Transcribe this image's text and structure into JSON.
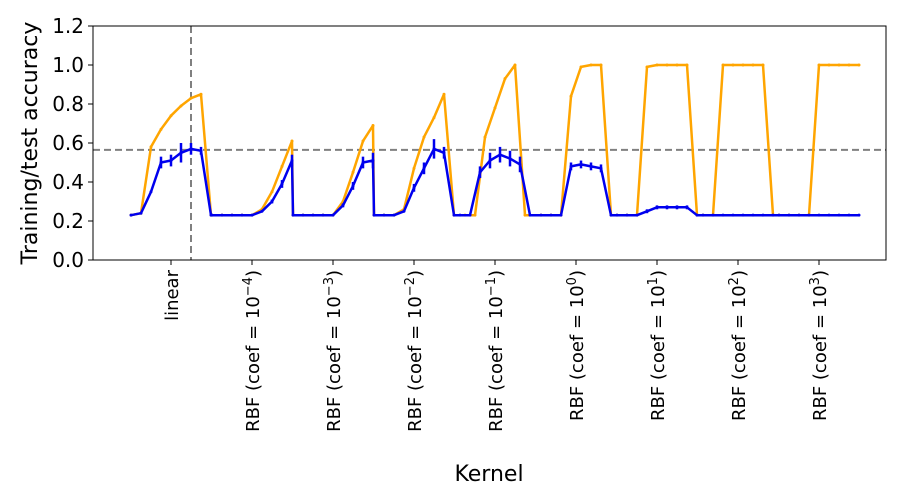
{
  "chart_data": {
    "type": "line",
    "xlabel": "Kernel",
    "ylabel": "Training/test accuracy",
    "ylim": [
      0,
      1.2
    ],
    "yticks": [
      "0.0",
      "0.2",
      "0.4",
      "0.6",
      "0.8",
      "1.0",
      "1.2"
    ],
    "categories": [
      {
        "base": "linear",
        "exp": ""
      },
      {
        "base": "RBF (coef = 10",
        "exp": "−4"
      },
      {
        "base": "RBF (coef = 10",
        "exp": "−3"
      },
      {
        "base": "RBF (coef = 10",
        "exp": "−2"
      },
      {
        "base": "RBF (coef = 10",
        "exp": "−1"
      },
      {
        "base": "RBF (coef = 10",
        "exp": "0"
      },
      {
        "base": "RBF (coef = 10",
        "exp": "1"
      },
      {
        "base": "RBF (coef = 10",
        "exp": "2"
      },
      {
        "base": "RBF (coef = 10",
        "exp": "3"
      }
    ],
    "reference_lines": {
      "horizontal_y": 0.565,
      "vertical_between_category": 0
    },
    "colors": {
      "train": "#FFA500",
      "test": "#0000EE",
      "reference": "#808080"
    },
    "series": [
      {
        "color": "#FFA500",
        "groups": [
          [
            0.23,
            0.24,
            0.58,
            0.67,
            0.74,
            0.79,
            0.83,
            0.85,
            0.23
          ],
          [
            0.23,
            0.23,
            0.23,
            0.23,
            0.23,
            0.26,
            0.35,
            0.48,
            0.61
          ],
          [
            0.23,
            0.23,
            0.23,
            0.23,
            0.23,
            0.3,
            0.45,
            0.61,
            0.69
          ],
          [
            0.23,
            0.23,
            0.23,
            0.26,
            0.47,
            0.63,
            0.73,
            0.85,
            0.23
          ],
          [
            0.23,
            0.23,
            0.63,
            0.78,
            0.93,
            1.0,
            0.23
          ],
          [
            0.23,
            0.23,
            0.23,
            0.84,
            0.99,
            1.0,
            1.0,
            0.23
          ],
          [
            0.23,
            0.23,
            0.23,
            0.99,
            1.0,
            1.0,
            1.0,
            1.0,
            0.23
          ],
          [
            0.23,
            0.23,
            1.0,
            1.0,
            1.0,
            1.0,
            1.0,
            0.23
          ],
          [
            0.23,
            0.23,
            0.23,
            0.23,
            1.0,
            1.0,
            1.0,
            1.0,
            1.0
          ]
        ]
      },
      {
        "color": "#0000EE",
        "groups": [
          [
            0.23,
            0.24,
            0.35,
            0.5,
            0.51,
            0.55,
            0.57,
            0.56,
            0.23
          ],
          [
            0.23,
            0.23,
            0.23,
            0.23,
            0.23,
            0.25,
            0.3,
            0.39,
            0.51
          ],
          [
            0.23,
            0.23,
            0.23,
            0.23,
            0.23,
            0.28,
            0.38,
            0.5,
            0.51
          ],
          [
            0.23,
            0.23,
            0.23,
            0.25,
            0.37,
            0.47,
            0.57,
            0.55,
            0.23
          ],
          [
            0.23,
            0.23,
            0.45,
            0.51,
            0.54,
            0.52,
            0.49,
            0.23
          ],
          [
            0.23,
            0.23,
            0.23,
            0.48,
            0.49,
            0.48,
            0.47,
            0.23
          ],
          [
            0.23,
            0.23,
            0.23,
            0.25,
            0.27,
            0.27,
            0.27,
            0.27,
            0.23
          ],
          [
            0.23,
            0.23,
            0.23,
            0.23,
            0.23,
            0.23,
            0.23,
            0.23
          ],
          [
            0.23,
            0.23,
            0.23,
            0.23,
            0.23,
            0.23,
            0.23,
            0.23,
            0.23
          ]
        ],
        "errors": [
          [
            0,
            0,
            0,
            0.03,
            0.03,
            0.05,
            0.03,
            0.02,
            0
          ],
          [
            0,
            0,
            0,
            0,
            0,
            0,
            0.01,
            0.02,
            0.03
          ],
          [
            0,
            0,
            0,
            0,
            0,
            0.01,
            0.02,
            0.03,
            0.04
          ],
          [
            0,
            0,
            0,
            0,
            0.02,
            0.03,
            0.05,
            0.03,
            0
          ],
          [
            0,
            0,
            0.03,
            0.04,
            0.04,
            0.04,
            0.04,
            0
          ],
          [
            0,
            0,
            0,
            0.02,
            0.02,
            0.02,
            0.02,
            0
          ],
          [
            0,
            0,
            0,
            0.01,
            0.01,
            0.01,
            0.01,
            0.01,
            0
          ],
          [
            0,
            0,
            0,
            0,
            0,
            0,
            0,
            0
          ],
          [
            0,
            0,
            0,
            0,
            0,
            0,
            0,
            0,
            0
          ]
        ]
      }
    ]
  }
}
